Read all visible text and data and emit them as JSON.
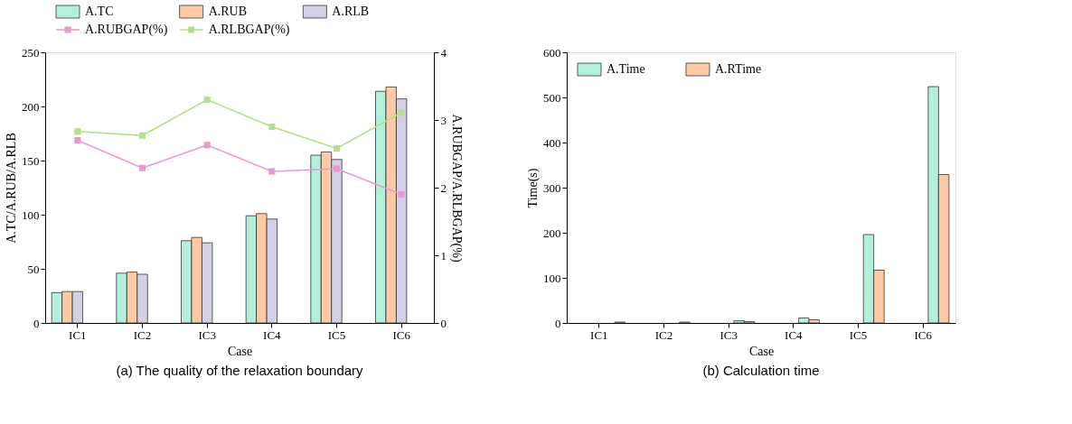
{
  "chart_data": [
    {
      "type": "bar",
      "title": "(a) The quality of the relaxation boundary",
      "xlabel": "Case",
      "ylabel": "A.TC/A.RUB/A.RLB",
      "y2label": "A.RUBGAP/A.RLBGAP(%)",
      "categories": [
        "IC1",
        "IC2",
        "IC3",
        "IC4",
        "IC5",
        "IC6"
      ],
      "ylim": [
        0,
        250
      ],
      "yticks": [
        0,
        50,
        100,
        150,
        200,
        250
      ],
      "y2lim": [
        0,
        4
      ],
      "y2ticks": [
        0,
        1,
        2,
        3,
        4
      ],
      "legend": "top",
      "grid": false,
      "marker": "square",
      "series": [
        {
          "name": "A.TC",
          "color": "#b3f0dc",
          "values": [
            28,
            46,
            76,
            99,
            155,
            214
          ]
        },
        {
          "name": "A.RUB",
          "color": "#fdcaa5",
          "values": [
            29,
            47,
            79,
            101,
            158,
            218
          ]
        },
        {
          "name": "A.RLB",
          "color": "#d3d0e6",
          "values": [
            29,
            45,
            74,
            96,
            151,
            207
          ]
        },
        {
          "name": "A.RUBGAP(%)",
          "type": "line",
          "axis": "y2",
          "color": "#e89ad0",
          "values": [
            2.7,
            2.29,
            2.63,
            2.24,
            2.28,
            1.9
          ]
        },
        {
          "name": "A.RLBGAP(%)",
          "type": "line",
          "axis": "y2",
          "color": "#b5e08a",
          "values": [
            2.83,
            2.77,
            3.3,
            2.9,
            2.58,
            3.11
          ]
        }
      ]
    },
    {
      "type": "bar",
      "title": "(b) Calculation time",
      "xlabel": "Case",
      "ylabel": "Time(s)",
      "categories": [
        "IC1",
        "IC2",
        "IC3",
        "IC4",
        "IC5",
        "IC6"
      ],
      "ylim": [
        0,
        600
      ],
      "yticks": [
        0,
        100,
        200,
        300,
        400,
        500,
        600
      ],
      "legend": "top left",
      "grid": false,
      "series": [
        {
          "name": "A.Time",
          "color": "#b3f0dc",
          "values": [
            null,
            null,
            5,
            11,
            196,
            524
          ]
        },
        {
          "name": "A.RTime",
          "color": "#fdcaa5",
          "values": [
            2,
            2,
            3,
            7,
            117,
            329
          ]
        }
      ]
    }
  ]
}
